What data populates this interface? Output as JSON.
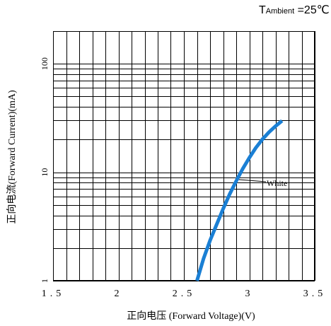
{
  "chart_data": {
    "type": "line",
    "annotation": {
      "prefix": "T",
      "subscript": "Ambient",
      "suffix": " =25℃"
    },
    "xlabel": "正向电压 (Forward Voltage)(V)",
    "ylabel": "正向电流(Forward Current)(mA)",
    "x_ticks": [
      "1.5",
      "2",
      "2.5",
      "3",
      "3.5"
    ],
    "x_tick_values": [
      1.5,
      2,
      2.5,
      3,
      3.5
    ],
    "y_ticks": [
      "1",
      "10",
      "100"
    ],
    "y_tick_values": [
      1,
      10,
      100
    ],
    "xlim": [
      1.5,
      3.5
    ],
    "ylim": [
      1,
      200
    ],
    "y_scale": "log",
    "grid": true,
    "line_color": "#1a7fd4",
    "series": [
      {
        "label": "White",
        "x": [
          2.6,
          2.65,
          2.7,
          2.75,
          2.8,
          2.85,
          2.9,
          2.95,
          3.0,
          3.05,
          3.1,
          3.15,
          3.2,
          3.25
        ],
        "y": [
          1,
          1.6,
          2.35,
          3.3,
          4.6,
          6.3,
          8.3,
          10.8,
          13.6,
          16.8,
          20.1,
          23.4,
          26.6,
          29.8
        ]
      }
    ]
  }
}
